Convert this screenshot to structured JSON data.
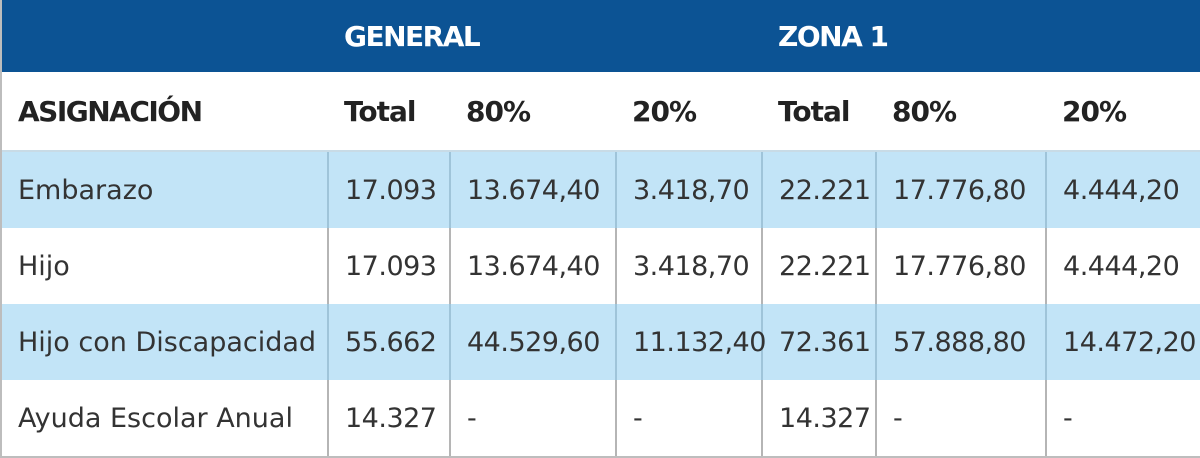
{
  "table": {
    "groups": {
      "general": "GENERAL",
      "zona1": "ZONA 1"
    },
    "headers": [
      "ASIGNACIÓN",
      "Total",
      "80%",
      "20%",
      "Total",
      "80%",
      "20%"
    ],
    "rows": [
      [
        "Embarazo",
        "17.093",
        "13.674,40",
        "3.418,70",
        "22.221",
        "17.776,80",
        "4.444,20"
      ],
      [
        "Hijo",
        "17.093",
        "13.674,40",
        "3.418,70",
        "22.221",
        "17.776,80",
        "4.444,20"
      ],
      [
        "Hijo con Discapacidad",
        "55.662",
        "44.529,60",
        "11.132,40",
        "72.361",
        "57.888,80",
        "14.472,20"
      ],
      [
        "Ayuda Escolar Anual",
        "14.327",
        "-",
        "-",
        "14.327",
        "-",
        "-"
      ]
    ]
  },
  "colors": {
    "header_bg": "#0c5394",
    "alt_row_bg": "#c2e4f7"
  }
}
